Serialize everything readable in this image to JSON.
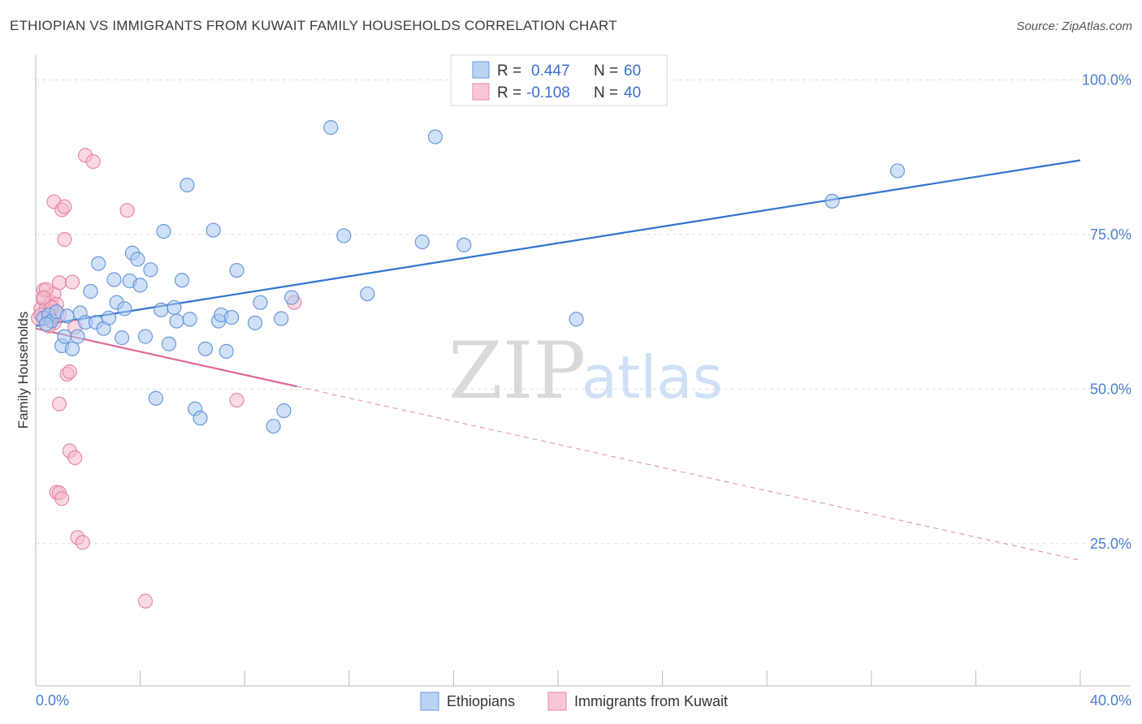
{
  "title": "ETHIOPIAN VS IMMIGRANTS FROM KUWAIT FAMILY HOUSEHOLDS CORRELATION CHART",
  "source": "Source: ZipAtlas.com",
  "watermark": {
    "zip": "ZIP",
    "atlas": "atlas"
  },
  "colors": {
    "blue_fill": "#a9c8f0",
    "blue_stroke": "#5b8fd6",
    "blue_line": "#2f74d0",
    "pink_fill": "#f6b9cb",
    "pink_stroke": "#e27fa0",
    "pink_line": "#e0689a",
    "grid": "#dddddd",
    "axis_text": "#4a7fd0"
  },
  "legend": {
    "rows": [
      {
        "r_label": "R = ",
        "r_value": "0.447",
        "n_label": "N = ",
        "n_value": "60"
      },
      {
        "r_label": "R = ",
        "r_value": "-0.108",
        "n_label": "N = ",
        "n_value": "40"
      }
    ]
  },
  "bottom_legend": [
    "Ethiopians",
    "Immigrants from Kuwait"
  ],
  "chart_data": {
    "type": "scatter",
    "title": "ETHIOPIAN VS IMMIGRANTS FROM KUWAIT FAMILY HOUSEHOLDS CORRELATION CHART",
    "xlabel": "",
    "ylabel": "Family Households",
    "xlim": [
      0,
      40
    ],
    "ylim": [
      2,
      104
    ],
    "x_tick_labels": {
      "left": "0.0%",
      "right": "40.0%"
    },
    "y_ticks": [
      {
        "value": 100,
        "label": "100.0%"
      },
      {
        "value": 75,
        "label": "75.0%"
      },
      {
        "value": 50,
        "label": "50.0%"
      },
      {
        "value": 25,
        "label": "25.0%"
      }
    ],
    "series": [
      {
        "name": "Ethiopians",
        "color": "blue",
        "r": 0.447,
        "n": 60,
        "trend": {
          "x0": 0,
          "y0": 60.2,
          "x1": 40,
          "y1": 87.0,
          "dashed_from": null
        },
        "points": [
          [
            0.3,
            61.5
          ],
          [
            0.5,
            62.0
          ],
          [
            0.6,
            61.0
          ],
          [
            0.8,
            62.5
          ],
          [
            1.0,
            57.0
          ],
          [
            1.1,
            58.5
          ],
          [
            1.4,
            56.5
          ],
          [
            1.6,
            58.5
          ],
          [
            1.7,
            62.3
          ],
          [
            1.9,
            60.8
          ],
          [
            2.1,
            65.8
          ],
          [
            2.3,
            60.8
          ],
          [
            2.4,
            70.3
          ],
          [
            2.6,
            59.8
          ],
          [
            2.8,
            61.5
          ],
          [
            3.0,
            67.7
          ],
          [
            3.1,
            64.0
          ],
          [
            3.3,
            58.3
          ],
          [
            3.4,
            63.0
          ],
          [
            3.6,
            67.5
          ],
          [
            3.7,
            72.0
          ],
          [
            3.9,
            71.0
          ],
          [
            4.0,
            66.8
          ],
          [
            4.2,
            58.5
          ],
          [
            4.4,
            69.3
          ],
          [
            4.6,
            48.5
          ],
          [
            4.8,
            62.8
          ],
          [
            4.9,
            75.5
          ],
          [
            5.1,
            57.3
          ],
          [
            5.3,
            63.2
          ],
          [
            5.4,
            61.0
          ],
          [
            5.6,
            67.6
          ],
          [
            5.8,
            83.0
          ],
          [
            5.9,
            61.3
          ],
          [
            6.1,
            46.8
          ],
          [
            6.3,
            45.3
          ],
          [
            6.5,
            56.5
          ],
          [
            6.8,
            75.7
          ],
          [
            7.0,
            61.0
          ],
          [
            7.1,
            62.0
          ],
          [
            7.3,
            56.1
          ],
          [
            7.5,
            61.6
          ],
          [
            7.7,
            69.2
          ],
          [
            8.4,
            60.7
          ],
          [
            8.6,
            64.0
          ],
          [
            9.1,
            44.0
          ],
          [
            9.4,
            61.4
          ],
          [
            9.5,
            46.5
          ],
          [
            9.8,
            64.8
          ],
          [
            11.3,
            92.3
          ],
          [
            11.8,
            74.8
          ],
          [
            12.7,
            65.4
          ],
          [
            14.8,
            73.8
          ],
          [
            15.3,
            90.8
          ],
          [
            16.4,
            73.3
          ],
          [
            20.7,
            61.3
          ],
          [
            30.5,
            80.4
          ],
          [
            33.0,
            85.3
          ],
          [
            0.4,
            60.5
          ],
          [
            1.2,
            61.8
          ]
        ]
      },
      {
        "name": "Immigrants from Kuwait",
        "color": "pink",
        "r": -0.108,
        "n": 40,
        "trend": {
          "x0": 0,
          "y0": 59.8,
          "x1": 40,
          "y1": 22.3,
          "dashed_from": 10
        },
        "points": [
          [
            0.1,
            61.5
          ],
          [
            0.2,
            63.0
          ],
          [
            0.3,
            66.0
          ],
          [
            0.3,
            64.5
          ],
          [
            0.4,
            63.0
          ],
          [
            0.5,
            61.5
          ],
          [
            0.6,
            64.0
          ],
          [
            0.6,
            62.5
          ],
          [
            0.7,
            65.4
          ],
          [
            0.7,
            60.7
          ],
          [
            0.8,
            63.7
          ],
          [
            0.9,
            62.0
          ],
          [
            0.7,
            80.3
          ],
          [
            0.9,
            67.2
          ],
          [
            0.9,
            47.6
          ],
          [
            1.0,
            79.0
          ],
          [
            1.1,
            79.5
          ],
          [
            1.1,
            74.2
          ],
          [
            1.2,
            52.4
          ],
          [
            1.3,
            52.8
          ],
          [
            1.3,
            40.0
          ],
          [
            1.4,
            67.3
          ],
          [
            1.5,
            38.9
          ],
          [
            1.6,
            26.0
          ],
          [
            1.8,
            25.2
          ],
          [
            1.9,
            87.8
          ],
          [
            2.2,
            86.8
          ],
          [
            0.8,
            33.3
          ],
          [
            0.9,
            33.2
          ],
          [
            1.0,
            32.3
          ],
          [
            3.5,
            78.9
          ],
          [
            4.2,
            15.7
          ],
          [
            7.7,
            48.2
          ],
          [
            9.9,
            64.0
          ],
          [
            0.2,
            62.0
          ],
          [
            0.5,
            60.2
          ],
          [
            0.4,
            66.1
          ],
          [
            0.6,
            63.2
          ],
          [
            1.5,
            60.0
          ],
          [
            0.3,
            64.8
          ]
        ]
      }
    ]
  }
}
